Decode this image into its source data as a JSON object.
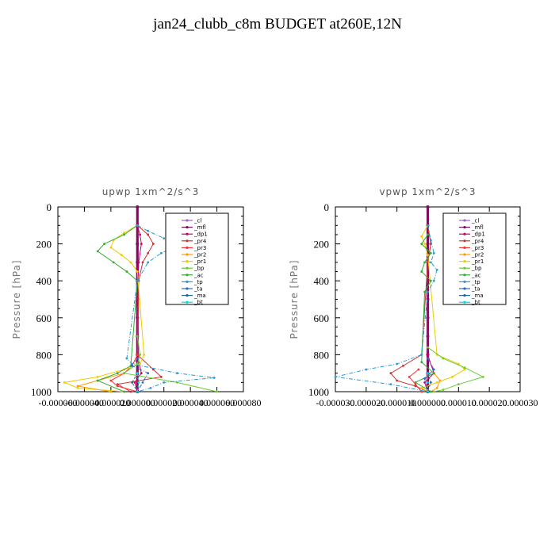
{
  "title": "jan24_clubb_c8m  BUDGET at260E,12N",
  "chart_data": [
    {
      "type": "line",
      "title": "upwp   1xm^2/s^3",
      "ylabel": "Pressure [hPa]",
      "ylim": [
        1000,
        0
      ],
      "yticks": [
        "0",
        "200",
        "400",
        "600",
        "800",
        "1000"
      ],
      "xlim": [
        -6e-05,
        8e-05
      ],
      "xtick_labels": [
        "-0.000060",
        "-0.000040",
        "-0.000020",
        "0.000000",
        "0.000020",
        "0.000040",
        "0.000060",
        "0.000080"
      ],
      "legend_position": "top-right",
      "series": [
        {
          "name": "_cl",
          "color": "#9966cc",
          "p": [
            0,
            200,
            400,
            600,
            800,
            1000
          ],
          "v": [
            0,
            0,
            0,
            0,
            0,
            0
          ]
        },
        {
          "name": "_mfl",
          "color": "#7a0f5a",
          "p": [
            0,
            100,
            200,
            300,
            400,
            500,
            600,
            700,
            800,
            900,
            1000
          ],
          "v": [
            0,
            0,
            0,
            0,
            0,
            0,
            0,
            0,
            0,
            0,
            0
          ]
        },
        {
          "name": "_dp1",
          "color": "#cc0066",
          "p": [
            100,
            150,
            200,
            300,
            500,
            800,
            900,
            950,
            1000
          ],
          "v": [
            0,
            2e-06,
            3e-06,
            1e-06,
            0,
            0,
            3e-06,
            -2e-06,
            0
          ]
        },
        {
          "name": "_pr4",
          "color": "#cc3333",
          "p": [
            100,
            150,
            200,
            250,
            300,
            400,
            800,
            880,
            920,
            960,
            1000
          ],
          "v": [
            0,
            8e-06,
            1.2e-05,
            8e-06,
            4e-06,
            1e-06,
            0,
            1.2e-05,
            1.8e-05,
            -1.5e-05,
            -5e-06
          ]
        },
        {
          "name": "_pr3",
          "color": "#ff3333",
          "p": [
            800,
            860,
            900,
            940,
            970,
            1000
          ],
          "v": [
            0,
            -4e-06,
            -1e-05,
            -2e-05,
            -1.5e-05,
            0
          ]
        },
        {
          "name": "_pr2",
          "color": "#ff9900",
          "p": [
            900,
            940,
            970,
            1000
          ],
          "v": [
            -1e-05,
            -3e-05,
            -4.5e-05,
            -2e-05
          ]
        },
        {
          "name": "_pr1",
          "color": "#eecc00",
          "p": [
            100,
            140,
            180,
            220,
            260,
            300,
            350,
            800,
            850,
            880,
            920,
            950,
            980,
            1000
          ],
          "v": [
            0,
            -1e-05,
            -1.8e-05,
            -2e-05,
            -1.2e-05,
            -5e-06,
            0,
            5e-06,
            2e-06,
            -1e-05,
            -3e-05,
            -5.5e-05,
            -4.5e-05,
            -1e-05
          ]
        },
        {
          "name": "_bp",
          "color": "#66cc33",
          "p": [
            700,
            800,
            850,
            900,
            950,
            1000
          ],
          "v": [
            0,
            2e-06,
            0,
            -1e-05,
            3e-05,
            6e-05
          ]
        },
        {
          "name": "_ac",
          "color": "#33aa33",
          "p": [
            100,
            150,
            200,
            240,
            300,
            350,
            400,
            860,
            900,
            940,
            1000
          ],
          "v": [
            0,
            -1e-05,
            -2.5e-05,
            -3e-05,
            -1.8e-05,
            -8e-06,
            0,
            -5e-06,
            -1.5e-05,
            -3e-05,
            -1e-05
          ]
        },
        {
          "name": "_tp",
          "color": "#3399cc",
          "p": [
            100,
            130,
            170,
            210,
            250,
            300,
            400,
            820,
            850,
            900,
            925,
            950,
            980,
            1000
          ],
          "v": [
            0,
            8e-06,
            2e-05,
            3e-05,
            1.8e-05,
            8e-06,
            0,
            -8e-06,
            -4e-06,
            3e-05,
            5.8e-05,
            2e-05,
            1e-05,
            0
          ]
        },
        {
          "name": "_ta",
          "color": "#3366cc",
          "p": [
            820,
            860,
            900,
            950,
            1000
          ],
          "v": [
            0,
            -4e-06,
            8e-06,
            4e-06,
            0
          ]
        },
        {
          "name": "_ma",
          "color": "#226699",
          "p": [
            900,
            950,
            1000
          ],
          "v": [
            0,
            -4e-06,
            0
          ]
        },
        {
          "name": "_bt",
          "color": "#00dddd",
          "p": [
            900,
            950,
            1000
          ],
          "v": [
            0,
            1e-06,
            0
          ]
        }
      ]
    },
    {
      "type": "line",
      "title": "vpwp   1xm^2/s^3",
      "ylabel": "Pressure [hPa]",
      "ylim": [
        1000,
        0
      ],
      "yticks": [
        "0",
        "200",
        "400",
        "600",
        "800",
        "1000"
      ],
      "xlim": [
        -3e-05,
        3e-05
      ],
      "xtick_labels": [
        "-0.000030",
        "-0.000020",
        "-0.000010",
        "0.000000",
        "0.000010",
        "0.000020",
        "0.000030"
      ],
      "legend_position": "top-right",
      "series": [
        {
          "name": "_cl",
          "color": "#9966cc",
          "p": [
            0,
            200,
            400,
            600,
            800,
            1000
          ],
          "v": [
            0,
            0,
            0,
            0,
            0,
            0
          ]
        },
        {
          "name": "_mfl",
          "color": "#7a0f5a",
          "p": [
            0,
            100,
            200,
            300,
            400,
            500,
            600,
            700,
            800,
            900,
            1000
          ],
          "v": [
            0,
            0,
            0,
            0,
            0,
            0,
            0,
            0,
            0,
            0,
            0
          ]
        },
        {
          "name": "_dp1",
          "color": "#cc0066",
          "p": [
            100,
            200,
            300,
            800,
            900,
            950,
            1000
          ],
          "v": [
            0,
            1e-06,
            0,
            0,
            2e-06,
            -1e-06,
            0
          ]
        },
        {
          "name": "_pr4",
          "color": "#cc3333",
          "p": [
            100,
            200,
            300,
            800,
            860,
            900,
            940,
            970,
            1000
          ],
          "v": [
            0,
            1e-06,
            0,
            -2e-06,
            -8e-06,
            -1.2e-05,
            -1e-05,
            -4e-06,
            0
          ]
        },
        {
          "name": "_pr3",
          "color": "#ff3333",
          "p": [
            880,
            920,
            960,
            1000
          ],
          "v": [
            -3e-06,
            -6e-06,
            -4e-06,
            -2e-06
          ]
        },
        {
          "name": "_pr2",
          "color": "#ff9900",
          "p": [
            900,
            940,
            980,
            1000
          ],
          "v": [
            2e-06,
            4e-06,
            3e-06,
            1e-06
          ]
        },
        {
          "name": "_pr1",
          "color": "#eecc00",
          "p": [
            100,
            160,
            200,
            260,
            800,
            850,
            880,
            920,
            950,
            980,
            1000
          ],
          "v": [
            0,
            -2e-06,
            -1e-06,
            0,
            3e-06,
            1e-05,
            1.2e-05,
            8e-06,
            3e-06,
            -2e-06,
            0
          ]
        },
        {
          "name": "_bp",
          "color": "#66cc33",
          "p": [
            760,
            820,
            870,
            920,
            960,
            990,
            1000
          ],
          "v": [
            0,
            5e-06,
            1.2e-05,
            1.8e-05,
            1e-05,
            5e-06,
            2e-06
          ]
        },
        {
          "name": "_ac",
          "color": "#33aa33",
          "p": [
            150,
            200,
            250,
            300,
            350,
            400,
            460,
            840,
            900,
            950,
            1000
          ],
          "v": [
            0,
            -2e-06,
            1e-06,
            -1e-06,
            -2e-06,
            1e-06,
            -1e-06,
            -2e-06,
            2e-06,
            -4e-06,
            1e-06
          ]
        },
        {
          "name": "_tp",
          "color": "#3399cc",
          "p": [
            100,
            180,
            250,
            300,
            340,
            400,
            460,
            800,
            850,
            880,
            920,
            960,
            1000
          ],
          "v": [
            0,
            1e-06,
            2e-06,
            1e-06,
            3e-06,
            2e-06,
            0,
            -2e-06,
            -1e-05,
            -2e-05,
            -3e-05,
            -1.2e-05,
            0
          ]
        },
        {
          "name": "_ta",
          "color": "#3366cc",
          "p": [
            820,
            880,
            930,
            1000
          ],
          "v": [
            0,
            2e-06,
            -1e-06,
            0
          ]
        },
        {
          "name": "_ma",
          "color": "#226699",
          "p": [
            900,
            950,
            1000
          ],
          "v": [
            0,
            1e-06,
            0
          ]
        },
        {
          "name": "_bt",
          "color": "#00dddd",
          "p": [
            900,
            950,
            1000
          ],
          "v": [
            0,
            0,
            0
          ]
        }
      ]
    }
  ]
}
